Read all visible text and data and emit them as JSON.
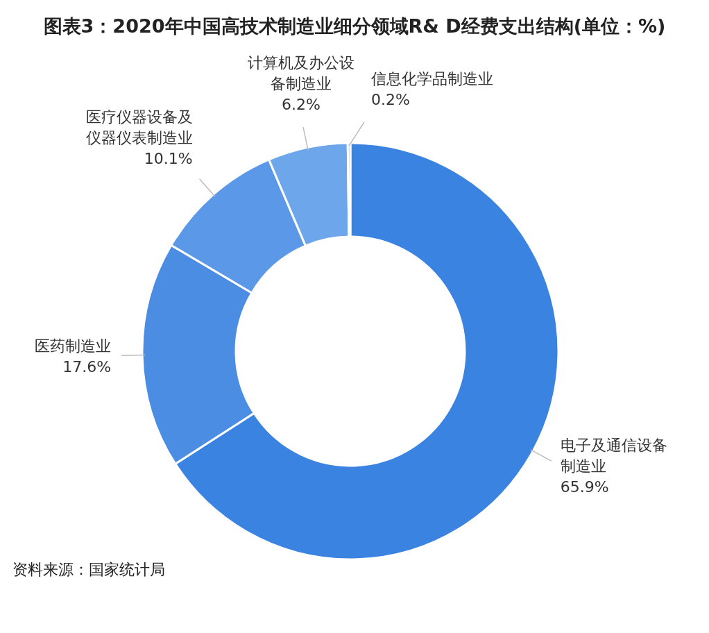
{
  "chart_data": {
    "type": "donut",
    "title": "图表3：2020年中国高技术制造业细分领域R& D经费支出结构(单位：%)",
    "categories": [
      "电子及通信设备制造业",
      "医药制造业",
      "医疗仪器设备及仪器仪表制造业",
      "计算机及办公设备制造业",
      "信息化学品制造业"
    ],
    "values": [
      65.9,
      17.6,
      10.1,
      6.2,
      0.2
    ],
    "colors": [
      "#3b83e0",
      "#4a8de3",
      "#5b99e8",
      "#6ea6ec",
      "#8fbbf0"
    ],
    "value_labels": [
      "65.9%",
      "17.6%",
      "10.1%",
      "6.2%",
      "0.2%"
    ],
    "annotations": [
      "资料来源：国家统计局"
    ]
  }
}
